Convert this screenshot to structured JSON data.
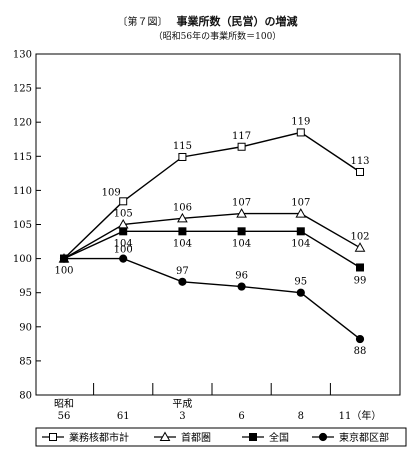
{
  "figure": {
    "label": "〔第７図〕",
    "title": "事業所数（民営）の増減",
    "subtitle": "（昭和56年の事業所数＝100）"
  },
  "chart_data": {
    "type": "line",
    "x_categories": [
      "昭和\n56",
      "61",
      "平成\n3",
      "6",
      "8",
      "11（年）"
    ],
    "ylim": [
      80,
      130
    ],
    "yticks": [
      80,
      85,
      90,
      95,
      100,
      105,
      110,
      115,
      120,
      125,
      130
    ],
    "grid": false,
    "legend_position": "bottom",
    "series": [
      {
        "name": "業務核都市計",
        "marker": "open-square",
        "values": [
          100,
          109,
          115,
          117,
          119,
          113
        ],
        "y_plot": [
          100,
          108.4,
          114.9,
          116.4,
          118.5,
          112.7
        ],
        "labels": [
          "",
          "109",
          "115",
          "117",
          "119",
          "113"
        ]
      },
      {
        "name": "首都圏",
        "marker": "open-triangle",
        "values": [
          100,
          105,
          106,
          107,
          107,
          102
        ],
        "y_plot": [
          100,
          105,
          105.9,
          106.6,
          106.6,
          101.6
        ],
        "labels": [
          "",
          "105",
          "106",
          "107",
          "107",
          "102"
        ]
      },
      {
        "name": "全国",
        "marker": "filled-square",
        "values": [
          100,
          104,
          104,
          104,
          104,
          99
        ],
        "y_plot": [
          100,
          104,
          104,
          104,
          104,
          98.7
        ],
        "labels": [
          "100",
          "104",
          "104",
          "104",
          "104",
          "99"
        ]
      },
      {
        "name": "東京都区部",
        "marker": "filled-circle",
        "values": [
          100,
          100,
          97,
          96,
          95,
          88
        ],
        "y_plot": [
          100,
          100,
          96.6,
          95.9,
          95,
          88.2
        ],
        "labels": [
          "",
          "100",
          "97",
          "96",
          "95",
          "88"
        ]
      }
    ]
  }
}
